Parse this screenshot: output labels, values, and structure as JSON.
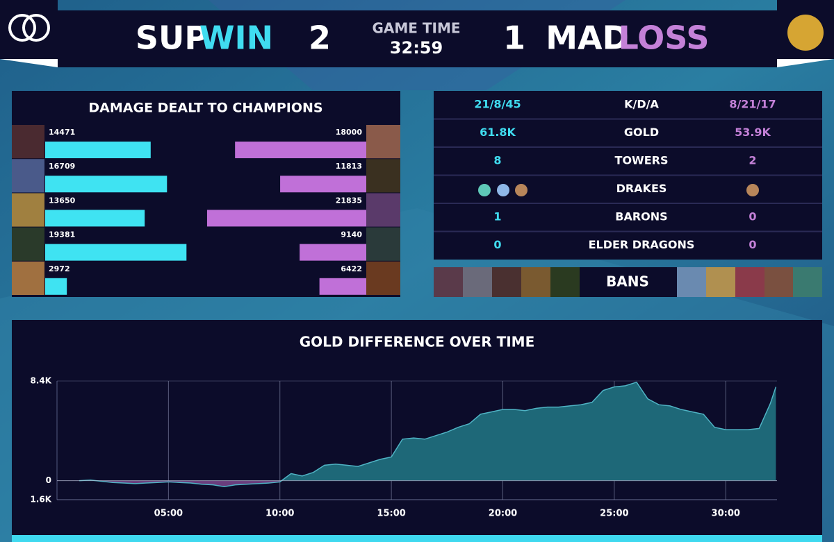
{
  "header": {
    "team1": "SUP",
    "result1": "WIN",
    "score1": "2",
    "game_time_label": "GAME TIME",
    "game_time": "32:59",
    "score2": "1",
    "team2": "MAD",
    "result2": "LOSS"
  },
  "stats": {
    "rows": [
      {
        "sup": "21/8/45",
        "label": "K/D/A",
        "mad": "8/21/17"
      },
      {
        "sup": "61.8K",
        "label": "GOLD",
        "mad": "53.9K"
      },
      {
        "sup": "8",
        "label": "TOWERS",
        "mad": "2"
      },
      {
        "label": "DRAKES"
      },
      {
        "sup": "1",
        "label": "BARONS",
        "mad": "0"
      },
      {
        "sup": "0",
        "label": "ELDER DRAGONS",
        "mad": "0"
      }
    ],
    "bans_label": "BANS"
  },
  "chart_data": [
    {
      "type": "bar",
      "title": "DAMAGE DEALT TO CHAMPIONS",
      "orientation": "horizontal",
      "series": [
        {
          "color": "#3fe3f2",
          "values": [
            14471,
            16709,
            13650,
            19381,
            2972
          ]
        },
        {
          "color": "#c070d8",
          "values": [
            18000,
            11813,
            21835,
            9140,
            6422
          ]
        }
      ]
    },
    {
      "type": "area",
      "title": "GOLD DIFFERENCE OVER TIME",
      "color": "#1e6878",
      "negative_color": "#6a3d7d",
      "line_color": "#4fb3c4",
      "grid": true,
      "x": [
        1,
        1.5,
        2,
        2.5,
        3,
        3.5,
        4,
        4.5,
        5,
        5.5,
        6,
        6.5,
        7,
        7.5,
        8,
        8.5,
        9,
        9.5,
        10,
        10.5,
        11,
        11.5,
        12,
        12.5,
        13,
        13.5,
        14,
        14.5,
        15,
        15.5,
        16,
        16.5,
        17,
        17.5,
        18,
        18.5,
        19,
        19.5,
        20,
        20.5,
        21,
        21.5,
        22,
        22.5,
        23,
        23.5,
        24,
        24.5,
        25,
        25.5,
        26,
        26.5,
        27,
        27.5,
        28,
        28.5,
        29,
        29.5,
        30,
        30.5,
        31,
        31.5,
        32,
        32.25
      ],
      "values": [
        0,
        50,
        -50,
        -150,
        -200,
        -250,
        -200,
        -150,
        -100,
        -150,
        -200,
        -300,
        -350,
        -500,
        -350,
        -300,
        -250,
        -200,
        -100,
        600,
        400,
        700,
        1300,
        1400,
        1300,
        1200,
        1500,
        1800,
        2000,
        3500,
        3600,
        3500,
        3800,
        4100,
        4500,
        4800,
        5600,
        5800,
        6000,
        6000,
        5900,
        6100,
        6200,
        6200,
        6300,
        6400,
        6600,
        7600,
        7900,
        8000,
        8300,
        6900,
        6400,
        6300,
        6000,
        5800,
        5600,
        4500,
        4300,
        4300,
        4300,
        4400,
        6500,
        7900
      ],
      "xlim": [
        0,
        32.3
      ],
      "xticks": [
        {
          "value": 5,
          "label": "05:00"
        },
        {
          "value": 10,
          "label": "10:00"
        },
        {
          "value": 15,
          "label": "15:00"
        },
        {
          "value": 20,
          "label": "20:00"
        },
        {
          "value": 25,
          "label": "25:00"
        },
        {
          "value": 30,
          "label": "30:00"
        }
      ],
      "ylim": [
        -1600,
        8400
      ],
      "yticks": [
        {
          "value": 8400,
          "label": "8.4K"
        },
        0,
        {
          "value": -1600,
          "label": "1.6K"
        }
      ]
    }
  ]
}
